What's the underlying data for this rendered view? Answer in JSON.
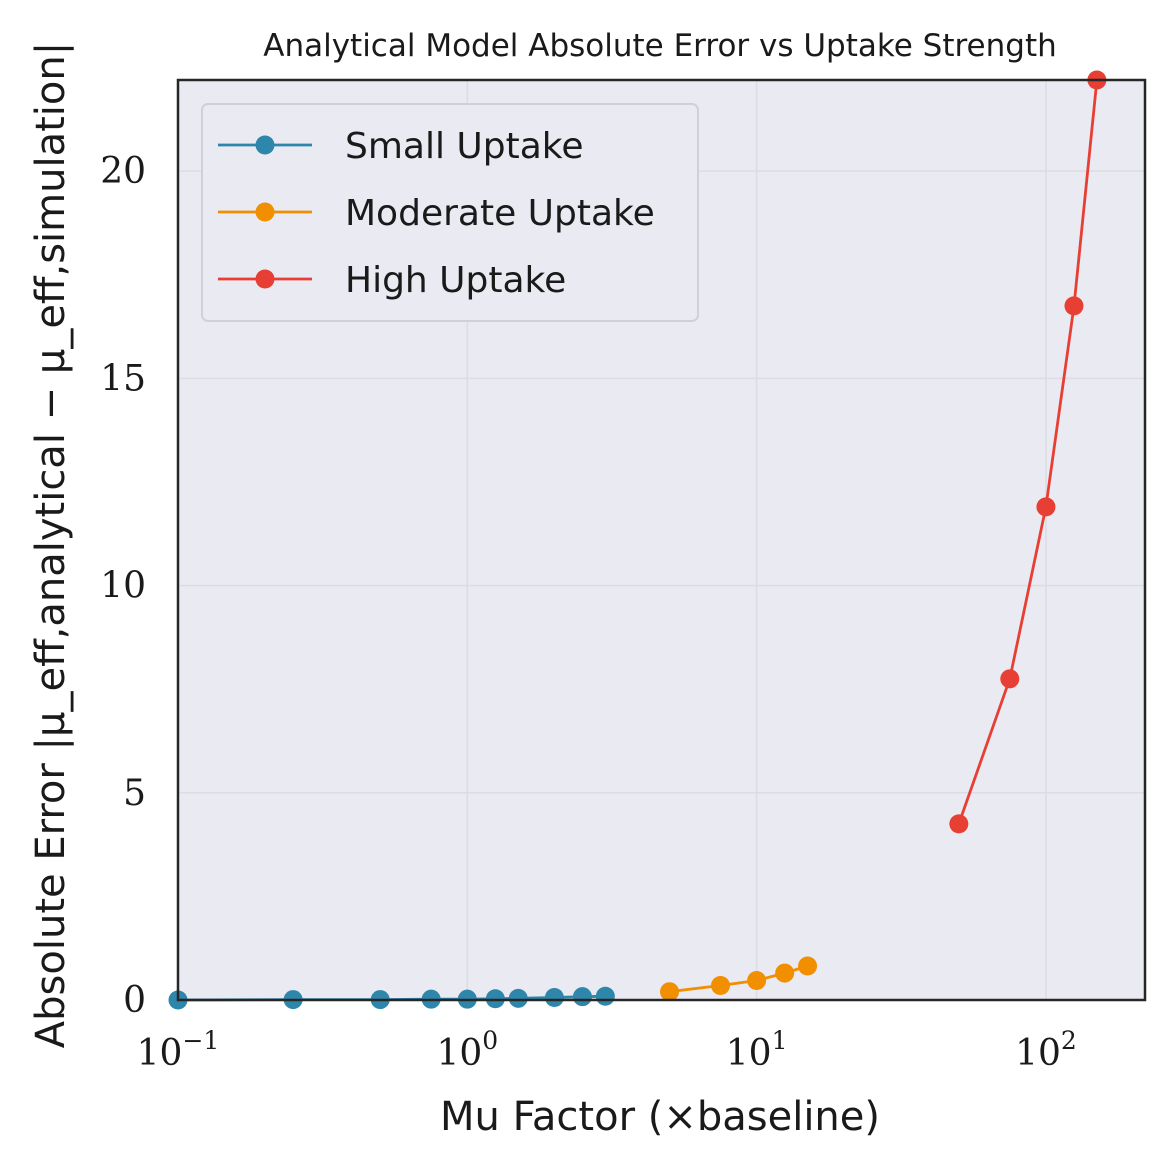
{
  "chart_data": {
    "type": "line",
    "title": "Analytical Model Absolute Error vs Uptake Strength",
    "xlabel": "Mu Factor (×baseline)",
    "ylabel": "Absolute Error |μ_eff,analytical − μ_eff,simulation|",
    "xscale": "log",
    "xlim": [
      0.1,
      220
    ],
    "ylim": [
      0,
      22.2
    ],
    "grid": true,
    "legend_position": "top-left",
    "x_ticks": [
      {
        "value": 0.1,
        "base": "10",
        "exp": "−1"
      },
      {
        "value": 1,
        "base": "10",
        "exp": "0"
      },
      {
        "value": 10,
        "base": "10",
        "exp": "1"
      },
      {
        "value": 100,
        "base": "10",
        "exp": "2"
      }
    ],
    "y_ticks": [
      {
        "value": 0,
        "label": "0"
      },
      {
        "value": 5,
        "label": "5"
      },
      {
        "value": 10,
        "label": "10"
      },
      {
        "value": 15,
        "label": "15"
      },
      {
        "value": 20,
        "label": "20"
      }
    ],
    "series": [
      {
        "name": "Small Uptake",
        "color": "#2e86ab",
        "x": [
          0.1,
          0.25,
          0.5,
          0.75,
          1.0,
          1.25,
          1.5,
          2.0,
          2.5,
          3.0
        ],
        "y": [
          0.0,
          0.01,
          0.01,
          0.02,
          0.02,
          0.03,
          0.04,
          0.06,
          0.08,
          0.09
        ]
      },
      {
        "name": "Moderate Uptake",
        "color": "#f18f01",
        "x": [
          5.0,
          7.5,
          10.0,
          12.5,
          15.0
        ],
        "y": [
          0.2,
          0.35,
          0.47,
          0.65,
          0.82
        ]
      },
      {
        "name": "High Uptake",
        "color": "#e83f34",
        "x": [
          50,
          75,
          100,
          125,
          150
        ],
        "y": [
          4.25,
          7.75,
          11.9,
          16.75,
          22.2
        ]
      }
    ]
  },
  "colors": {
    "plot_background": "#eaeaf2",
    "grid": "#dcdce2",
    "frame": "#262626"
  }
}
